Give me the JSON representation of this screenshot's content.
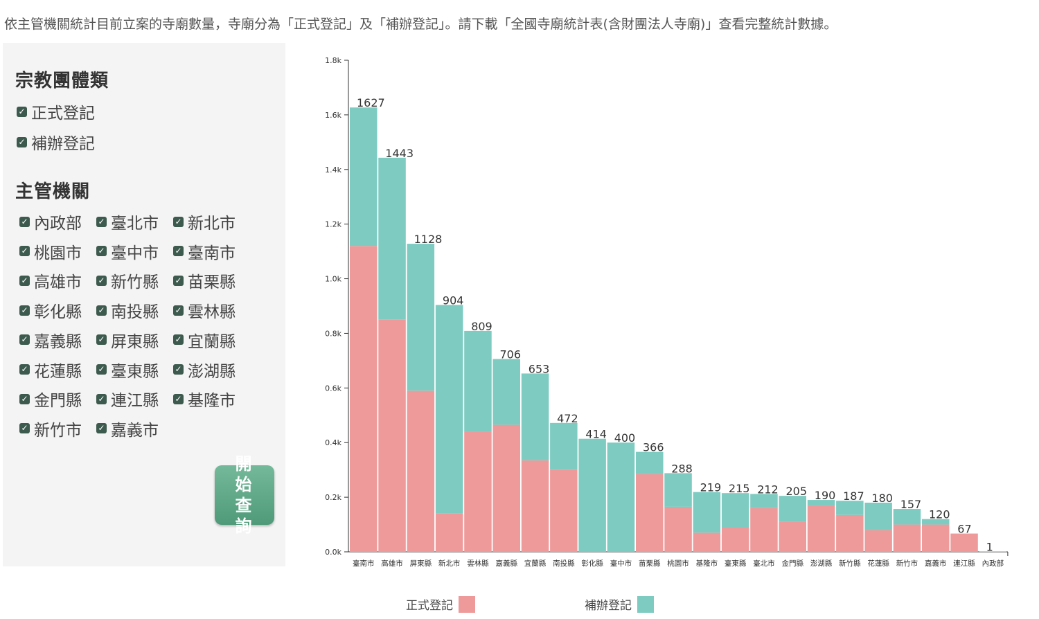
{
  "intro": "依主管機關統計目前立案的寺廟數量，寺廟分為「正式登記」及「補辦登記」。請下載「全國寺廟統計表(含財團法人寺廟)」查看完整統計數據。",
  "filters": {
    "category_title": "宗教團體類",
    "categories": [
      {
        "label": "正式登記",
        "checked": true
      },
      {
        "label": "補辦登記",
        "checked": true
      }
    ],
    "authority_title": "主管機關",
    "authorities": [
      {
        "label": "內政部",
        "checked": true
      },
      {
        "label": "臺北市",
        "checked": true
      },
      {
        "label": "新北市",
        "checked": true
      },
      {
        "label": "桃園市",
        "checked": true
      },
      {
        "label": "臺中市",
        "checked": true
      },
      {
        "label": "臺南市",
        "checked": true
      },
      {
        "label": "高雄市",
        "checked": true
      },
      {
        "label": "新竹縣",
        "checked": true
      },
      {
        "label": "苗栗縣",
        "checked": true
      },
      {
        "label": "彰化縣",
        "checked": true
      },
      {
        "label": "南投縣",
        "checked": true
      },
      {
        "label": "雲林縣",
        "checked": true
      },
      {
        "label": "嘉義縣",
        "checked": true
      },
      {
        "label": "屏東縣",
        "checked": true
      },
      {
        "label": "宜蘭縣",
        "checked": true
      },
      {
        "label": "花蓮縣",
        "checked": true
      },
      {
        "label": "臺東縣",
        "checked": true
      },
      {
        "label": "澎湖縣",
        "checked": true
      },
      {
        "label": "金門縣",
        "checked": true
      },
      {
        "label": "連江縣",
        "checked": true
      },
      {
        "label": "基隆市",
        "checked": true
      },
      {
        "label": "新竹市",
        "checked": true
      },
      {
        "label": "嘉義市",
        "checked": true
      }
    ],
    "query_button": "開始查詢"
  },
  "colors": {
    "formal": "#ee9a9a",
    "supplementary": "#7ecbc2",
    "button": "#5aa684",
    "checkbox": "#3d5a4e"
  },
  "chart_data": {
    "type": "bar",
    "stacked": true,
    "categories": [
      "臺南市",
      "高雄市",
      "屏東縣",
      "新北市",
      "雲林縣",
      "嘉義縣",
      "宜蘭縣",
      "南投縣",
      "彰化縣",
      "臺中市",
      "苗栗縣",
      "桃園市",
      "基隆市",
      "臺東縣",
      "臺北市",
      "金門縣",
      "澎湖縣",
      "新竹縣",
      "花蓮縣",
      "新竹市",
      "嘉義市",
      "連江縣",
      "內政部"
    ],
    "totals": [
      1627,
      1443,
      1128,
      904,
      809,
      706,
      653,
      472,
      414,
      400,
      366,
      288,
      219,
      215,
      212,
      205,
      190,
      187,
      180,
      157,
      120,
      67,
      1
    ],
    "series": [
      {
        "name": "正式登記",
        "values": [
          1120,
          850,
          590,
          140,
          440,
          465,
          335,
          300,
          0,
          0,
          285,
          165,
          70,
          90,
          160,
          110,
          170,
          135,
          80,
          100,
          100,
          67,
          1
        ]
      },
      {
        "name": "補辦登記",
        "values": [
          507,
          593,
          538,
          764,
          369,
          241,
          318,
          172,
          414,
          400,
          81,
          123,
          149,
          125,
          52,
          95,
          20,
          52,
          100,
          57,
          20,
          0,
          0
        ]
      }
    ],
    "yticks": [
      "0.0k",
      "0.2k",
      "0.4k",
      "0.6k",
      "0.8k",
      "1.0k",
      "1.2k",
      "1.4k",
      "1.6k",
      "1.8k"
    ],
    "ylim": [
      0,
      1800
    ],
    "legend": [
      "正式登記",
      "補辦登記"
    ],
    "legend_position": "bottom"
  }
}
